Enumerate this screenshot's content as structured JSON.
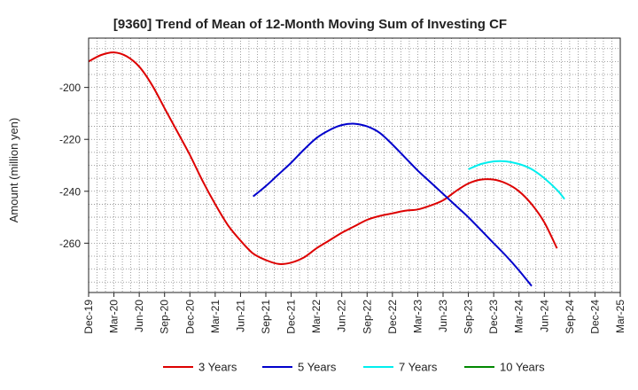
{
  "chart_data": {
    "type": "line",
    "title": "[9360]  Trend of Mean of 12-Month Moving Sum of Investing CF",
    "xlabel": "",
    "ylabel": "Amount (million yen)",
    "x_ticks": [
      "Dec-19",
      "Mar-20",
      "Jun-20",
      "Sep-20",
      "Dec-20",
      "Mar-21",
      "Jun-21",
      "Sep-21",
      "Dec-21",
      "Mar-22",
      "Jun-22",
      "Sep-22",
      "Dec-22",
      "Mar-23",
      "Jun-23",
      "Sep-23",
      "Dec-23",
      "Mar-24",
      "Jun-24",
      "Sep-24",
      "Dec-24",
      "Mar-25"
    ],
    "xlim": [
      0,
      21
    ],
    "y_ticks": [
      -260,
      -240,
      -220,
      -200
    ],
    "ylim": [
      -279,
      -181
    ],
    "grid": true,
    "legend_position": "bottom",
    "series": [
      {
        "name": "3 Years",
        "color": "#dd0000",
        "points": [
          [
            0,
            -190
          ],
          [
            0.5,
            -187.5
          ],
          [
            1,
            -186.5
          ],
          [
            1.5,
            -188
          ],
          [
            2,
            -192
          ],
          [
            2.5,
            -199
          ],
          [
            3,
            -208
          ],
          [
            3.5,
            -217
          ],
          [
            4,
            -226
          ],
          [
            4.5,
            -236
          ],
          [
            5,
            -245
          ],
          [
            5.5,
            -253
          ],
          [
            6,
            -259
          ],
          [
            6.5,
            -264
          ],
          [
            7,
            -266.5
          ],
          [
            7.5,
            -268
          ],
          [
            8,
            -267.5
          ],
          [
            8.5,
            -265.5
          ],
          [
            9,
            -262
          ],
          [
            9.5,
            -259
          ],
          [
            10,
            -256
          ],
          [
            10.5,
            -253.5
          ],
          [
            11,
            -251
          ],
          [
            11.5,
            -249.5
          ],
          [
            12,
            -248.5
          ],
          [
            12.5,
            -247.5
          ],
          [
            13,
            -247
          ],
          [
            13.5,
            -245.5
          ],
          [
            14,
            -243.5
          ],
          [
            14.5,
            -240
          ],
          [
            15,
            -237
          ],
          [
            15.5,
            -235.5
          ],
          [
            16,
            -235.5
          ],
          [
            16.5,
            -237
          ],
          [
            17,
            -240
          ],
          [
            17.5,
            -245
          ],
          [
            18,
            -252
          ],
          [
            18.5,
            -262
          ]
        ]
      },
      {
        "name": "5 Years",
        "color": "#0000cc",
        "points": [
          [
            6.5,
            -242
          ],
          [
            7,
            -238
          ],
          [
            7.5,
            -233.5
          ],
          [
            8,
            -229
          ],
          [
            8.5,
            -224
          ],
          [
            9,
            -219.5
          ],
          [
            9.5,
            -216.5
          ],
          [
            10,
            -214.5
          ],
          [
            10.5,
            -214
          ],
          [
            11,
            -215
          ],
          [
            11.5,
            -217.5
          ],
          [
            12,
            -222
          ],
          [
            12.5,
            -227
          ],
          [
            13,
            -232
          ],
          [
            13.5,
            -236.5
          ],
          [
            14,
            -241
          ],
          [
            14.5,
            -245.5
          ],
          [
            15,
            -250
          ],
          [
            15.5,
            -255
          ],
          [
            16,
            -260
          ],
          [
            16.5,
            -265
          ],
          [
            17,
            -270.5
          ],
          [
            17.5,
            -276.5
          ]
        ]
      },
      {
        "name": "7 Years",
        "color": "#00eeee",
        "points": [
          [
            15,
            -231.5
          ],
          [
            15.5,
            -229.5
          ],
          [
            16,
            -228.5
          ],
          [
            16.5,
            -228.5
          ],
          [
            17,
            -229.5
          ],
          [
            17.5,
            -231.5
          ],
          [
            18,
            -235
          ],
          [
            18.5,
            -239.5
          ],
          [
            18.8,
            -243
          ]
        ]
      },
      {
        "name": "10 Years",
        "color": "#008800",
        "points": []
      }
    ]
  }
}
